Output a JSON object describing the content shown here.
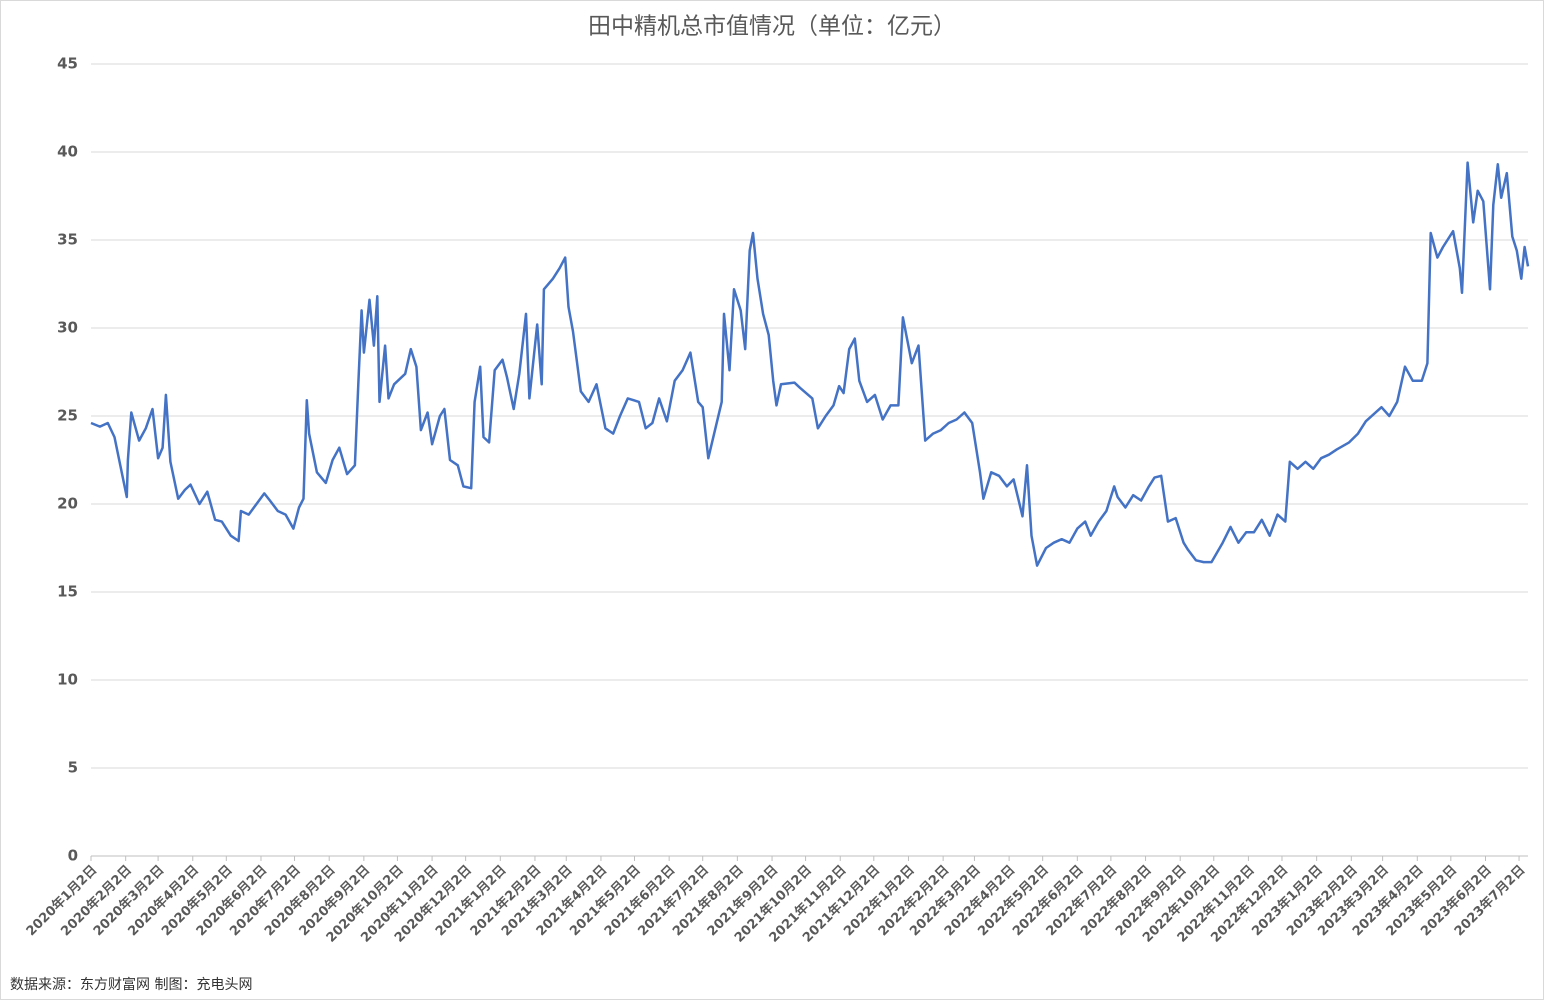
{
  "chart_data": {
    "type": "line",
    "title": "田中精机总市值情况（单位：亿元）",
    "source": "数据来源：东方财富网  制图：充电头网",
    "ylim": [
      0,
      45
    ],
    "yticks": [
      0,
      5,
      10,
      15,
      20,
      25,
      30,
      35,
      40,
      45
    ],
    "grid": true,
    "xlim": [
      "2020-01-02",
      "2023-07-10"
    ],
    "xticks": [
      {
        "value": "2020-01-02",
        "label": "2020年1月2日"
      },
      {
        "value": "2020-02-02",
        "label": "2020年2月2日"
      },
      {
        "value": "2020-03-02",
        "label": "2020年3月2日"
      },
      {
        "value": "2020-04-02",
        "label": "2020年4月2日"
      },
      {
        "value": "2020-05-02",
        "label": "2020年5月2日"
      },
      {
        "value": "2020-06-02",
        "label": "2020年6月2日"
      },
      {
        "value": "2020-07-02",
        "label": "2020年7月2日"
      },
      {
        "value": "2020-08-02",
        "label": "2020年8月2日"
      },
      {
        "value": "2020-09-02",
        "label": "2020年9月2日"
      },
      {
        "value": "2020-10-02",
        "label": "2020年10月2日"
      },
      {
        "value": "2020-11-02",
        "label": "2020年11月2日"
      },
      {
        "value": "2020-12-02",
        "label": "2020年12月2日"
      },
      {
        "value": "2021-01-02",
        "label": "2021年1月2日"
      },
      {
        "value": "2021-02-02",
        "label": "2021年2月2日"
      },
      {
        "value": "2021-03-02",
        "label": "2021年3月2日"
      },
      {
        "value": "2021-04-02",
        "label": "2021年4月2日"
      },
      {
        "value": "2021-05-02",
        "label": "2021年5月2日"
      },
      {
        "value": "2021-06-02",
        "label": "2021年6月2日"
      },
      {
        "value": "2021-07-02",
        "label": "2021年7月2日"
      },
      {
        "value": "2021-08-02",
        "label": "2021年8月2日"
      },
      {
        "value": "2021-09-02",
        "label": "2021年9月2日"
      },
      {
        "value": "2021-10-02",
        "label": "2021年10月2日"
      },
      {
        "value": "2021-11-02",
        "label": "2021年11月2日"
      },
      {
        "value": "2021-12-02",
        "label": "2021年12月2日"
      },
      {
        "value": "2022-01-02",
        "label": "2022年1月2日"
      },
      {
        "value": "2022-02-02",
        "label": "2022年2月2日"
      },
      {
        "value": "2022-03-02",
        "label": "2022年3月2日"
      },
      {
        "value": "2022-04-02",
        "label": "2022年4月2日"
      },
      {
        "value": "2022-05-02",
        "label": "2022年5月2日"
      },
      {
        "value": "2022-06-02",
        "label": "2022年6月2日"
      },
      {
        "value": "2022-07-02",
        "label": "2022年7月2日"
      },
      {
        "value": "2022-08-02",
        "label": "2022年8月2日"
      },
      {
        "value": "2022-09-02",
        "label": "2022年9月2日"
      },
      {
        "value": "2022-10-02",
        "label": "2022年10月2日"
      },
      {
        "value": "2022-11-02",
        "label": "2022年11月2日"
      },
      {
        "value": "2022-12-02",
        "label": "2022年12月2日"
      },
      {
        "value": "2023-01-02",
        "label": "2023年1月2日"
      },
      {
        "value": "2023-02-02",
        "label": "2023年2月2日"
      },
      {
        "value": "2023-03-02",
        "label": "2023年3月2日"
      },
      {
        "value": "2023-04-02",
        "label": "2023年4月2日"
      },
      {
        "value": "2023-05-02",
        "label": "2023年5月2日"
      },
      {
        "value": "2023-06-02",
        "label": "2023年6月2日"
      },
      {
        "value": "2023-07-02",
        "label": "2023年7月2日"
      }
    ],
    "x": [
      "2020-01-02",
      "2020-01-10",
      "2020-01-17",
      "2020-01-23",
      "2020-02-03",
      "2020-02-04",
      "2020-02-07",
      "2020-02-14",
      "2020-02-20",
      "2020-02-26",
      "2020-03-02",
      "2020-03-06",
      "2020-03-09",
      "2020-03-13",
      "2020-03-20",
      "2020-03-26",
      "2020-03-31",
      "2020-04-08",
      "2020-04-15",
      "2020-04-22",
      "2020-04-28",
      "2020-05-06",
      "2020-05-13",
      "2020-05-15",
      "2020-05-22",
      "2020-05-29",
      "2020-06-05",
      "2020-06-10",
      "2020-06-17",
      "2020-06-24",
      "2020-07-01",
      "2020-07-06",
      "2020-07-10",
      "2020-07-13",
      "2020-07-15",
      "2020-07-22",
      "2020-07-30",
      "2020-08-05",
      "2020-08-11",
      "2020-08-18",
      "2020-08-25",
      "2020-08-28",
      "2020-08-31",
      "2020-09-02",
      "2020-09-07",
      "2020-09-11",
      "2020-09-14",
      "2020-09-16",
      "2020-09-21",
      "2020-09-24",
      "2020-09-29",
      "2020-10-09",
      "2020-10-14",
      "2020-10-19",
      "2020-10-23",
      "2020-10-29",
      "2020-11-02",
      "2020-11-09",
      "2020-11-13",
      "2020-11-18",
      "2020-11-25",
      "2020-11-30",
      "2020-12-07",
      "2020-12-10",
      "2020-12-15",
      "2020-12-18",
      "2020-12-23",
      "2020-12-28",
      "2021-01-04",
      "2021-01-08",
      "2021-01-14",
      "2021-01-19",
      "2021-01-25",
      "2021-01-28",
      "2021-02-04",
      "2021-02-08",
      "2021-02-10",
      "2021-02-18",
      "2021-02-24",
      "2021-03-01",
      "2021-03-04",
      "2021-03-08",
      "2021-03-15",
      "2021-03-22",
      "2021-03-29",
      "2021-04-06",
      "2021-04-13",
      "2021-04-19",
      "2021-04-26",
      "2021-05-06",
      "2021-05-12",
      "2021-05-18",
      "2021-05-24",
      "2021-05-31",
      "2021-06-07",
      "2021-06-14",
      "2021-06-21",
      "2021-06-28",
      "2021-07-02",
      "2021-07-07",
      "2021-07-13",
      "2021-07-19",
      "2021-07-21",
      "2021-07-26",
      "2021-07-30",
      "2021-08-05",
      "2021-08-09",
      "2021-08-13",
      "2021-08-16",
      "2021-08-20",
      "2021-08-25",
      "2021-08-30",
      "2021-09-03",
      "2021-09-06",
      "2021-09-10",
      "2021-09-22",
      "2021-09-27",
      "2021-10-08",
      "2021-10-13",
      "2021-10-20",
      "2021-10-27",
      "2021-11-01",
      "2021-11-05",
      "2021-11-10",
      "2021-11-15",
      "2021-11-19",
      "2021-11-26",
      "2021-12-03",
      "2021-12-10",
      "2021-12-17",
      "2021-12-24",
      "2021-12-28",
      "2022-01-05",
      "2022-01-11",
      "2022-01-17",
      "2022-01-24",
      "2022-01-31",
      "2022-02-07",
      "2022-02-14",
      "2022-02-21",
      "2022-02-28",
      "2022-03-07",
      "2022-03-10",
      "2022-03-17",
      "2022-03-24",
      "2022-03-31",
      "2022-04-06",
      "2022-04-14",
      "2022-04-18",
      "2022-04-22",
      "2022-04-27",
      "2022-05-05",
      "2022-05-12",
      "2022-05-19",
      "2022-05-26",
      "2022-06-02",
      "2022-06-09",
      "2022-06-14",
      "2022-06-21",
      "2022-06-28",
      "2022-07-05",
      "2022-07-08",
      "2022-07-15",
      "2022-07-22",
      "2022-07-29",
      "2022-08-05",
      "2022-08-10",
      "2022-08-16",
      "2022-08-22",
      "2022-08-29",
      "2022-09-05",
      "2022-09-09",
      "2022-09-16",
      "2022-09-23",
      "2022-09-30",
      "2022-10-10",
      "2022-10-17",
      "2022-10-24",
      "2022-10-31",
      "2022-11-07",
      "2022-11-14",
      "2022-11-21",
      "2022-11-28",
      "2022-12-05",
      "2022-12-09",
      "2022-12-16",
      "2022-12-23",
      "2022-12-30",
      "2023-01-06",
      "2023-01-13",
      "2023-01-20",
      "2023-01-31",
      "2023-02-08",
      "2023-02-15",
      "2023-02-22",
      "2023-03-01",
      "2023-03-08",
      "2023-03-15",
      "2023-03-22",
      "2023-03-29",
      "2023-04-06",
      "2023-04-11",
      "2023-04-14",
      "2023-04-20",
      "2023-04-25",
      "2023-05-04",
      "2023-05-10",
      "2023-05-12",
      "2023-05-17",
      "2023-05-22",
      "2023-05-26",
      "2023-05-31",
      "2023-06-06",
      "2023-06-09",
      "2023-06-13",
      "2023-06-16",
      "2023-06-21",
      "2023-06-26",
      "2023-06-30",
      "2023-07-04",
      "2023-07-07",
      "2023-07-10"
    ],
    "series": [
      {
        "color": "#4472c4",
        "values": [
          24.6,
          24.4,
          24.6,
          23.8,
          20.4,
          22.5,
          25.2,
          23.6,
          24.3,
          25.4,
          22.6,
          23.2,
          26.2,
          22.4,
          20.3,
          20.8,
          21.1,
          20.0,
          20.7,
          19.1,
          19.0,
          18.2,
          17.9,
          19.6,
          19.4,
          20.0,
          20.6,
          20.2,
          19.6,
          19.4,
          18.6,
          19.8,
          20.3,
          25.9,
          24.0,
          21.8,
          21.2,
          22.5,
          23.2,
          21.7,
          22.2,
          26.8,
          31.0,
          28.6,
          31.6,
          29.0,
          31.8,
          25.8,
          29.0,
          26.0,
          26.8,
          27.4,
          28.8,
          27.8,
          24.2,
          25.2,
          23.4,
          25.0,
          25.4,
          22.5,
          22.2,
          21.0,
          20.9,
          25.8,
          27.8,
          23.8,
          23.5,
          27.6,
          28.2,
          27.2,
          25.4,
          27.4,
          30.8,
          26.0,
          30.2,
          26.8,
          32.2,
          32.8,
          33.4,
          34.0,
          31.2,
          29.8,
          26.4,
          25.8,
          26.8,
          24.3,
          24.0,
          25.0,
          26.0,
          25.8,
          24.3,
          24.6,
          26.0,
          24.7,
          27.0,
          27.6,
          28.6,
          25.8,
          25.5,
          22.6,
          24.2,
          25.8,
          30.8,
          27.6,
          32.2,
          31.0,
          28.8,
          34.4,
          35.4,
          32.8,
          30.8,
          29.6,
          27.0,
          25.6,
          26.8,
          26.9,
          26.6,
          26.0,
          24.3,
          25.0,
          25.6,
          26.7,
          26.3,
          28.8,
          29.4,
          27.0,
          25.8,
          26.2,
          24.8,
          25.6,
          25.6,
          30.6,
          28.0,
          29.0,
          23.6,
          24.0,
          24.2,
          24.6,
          24.8,
          25.2,
          24.6,
          21.8,
          20.3,
          21.8,
          21.6,
          21.0,
          21.4,
          19.3,
          22.2,
          18.2,
          16.5,
          17.5,
          17.8,
          18.0,
          17.8,
          18.6,
          19.0,
          18.2,
          19.0,
          19.6,
          21.0,
          20.4,
          19.8,
          20.5,
          20.2,
          21.0,
          21.5,
          21.6,
          19.0,
          19.2,
          17.8,
          17.4,
          16.8,
          16.7,
          16.7,
          17.8,
          18.7,
          17.8,
          18.4,
          18.4,
          19.1,
          18.2,
          19.4,
          19.0,
          22.4,
          22.0,
          22.4,
          22.0,
          22.6,
          22.8,
          23.1,
          23.5,
          24.0,
          24.7,
          25.1,
          25.5,
          25.0,
          25.8,
          27.8,
          27.0,
          27.0,
          28.0,
          35.4,
          34.0,
          34.6,
          35.5,
          33.4,
          32.0,
          39.4,
          36.0,
          37.8,
          37.2,
          32.2,
          37.0,
          39.3,
          37.4,
          38.8,
          35.2,
          34.4,
          32.8,
          34.6,
          33.5
        ]
      }
    ]
  }
}
